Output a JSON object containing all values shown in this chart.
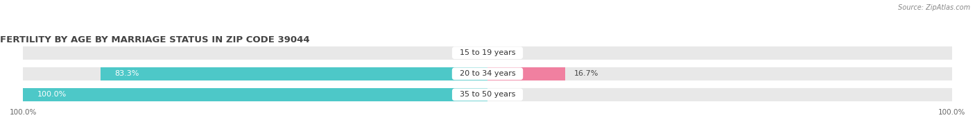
{
  "title": "FERTILITY BY AGE BY MARRIAGE STATUS IN ZIP CODE 39044",
  "source": "Source: ZipAtlas.com",
  "categories": [
    "15 to 19 years",
    "20 to 34 years",
    "35 to 50 years"
  ],
  "married_pct": [
    0.0,
    83.3,
    100.0
  ],
  "unmarried_pct": [
    0.0,
    16.7,
    0.0
  ],
  "married_color": "#4dc8c8",
  "unmarried_color": "#f080a0",
  "bar_bg_color_left": "#e8e8e8",
  "bar_bg_color_right": "#e8e8e8",
  "row_bg_color": "#f5f5f5",
  "bar_height": 0.62,
  "row_sep": 0.08,
  "figsize": [
    14.06,
    1.96
  ],
  "dpi": 100,
  "title_fontsize": 9.5,
  "pct_label_fontsize": 8,
  "cat_label_fontsize": 8,
  "axis_tick_fontsize": 7.5,
  "legend_fontsize": 8.5
}
